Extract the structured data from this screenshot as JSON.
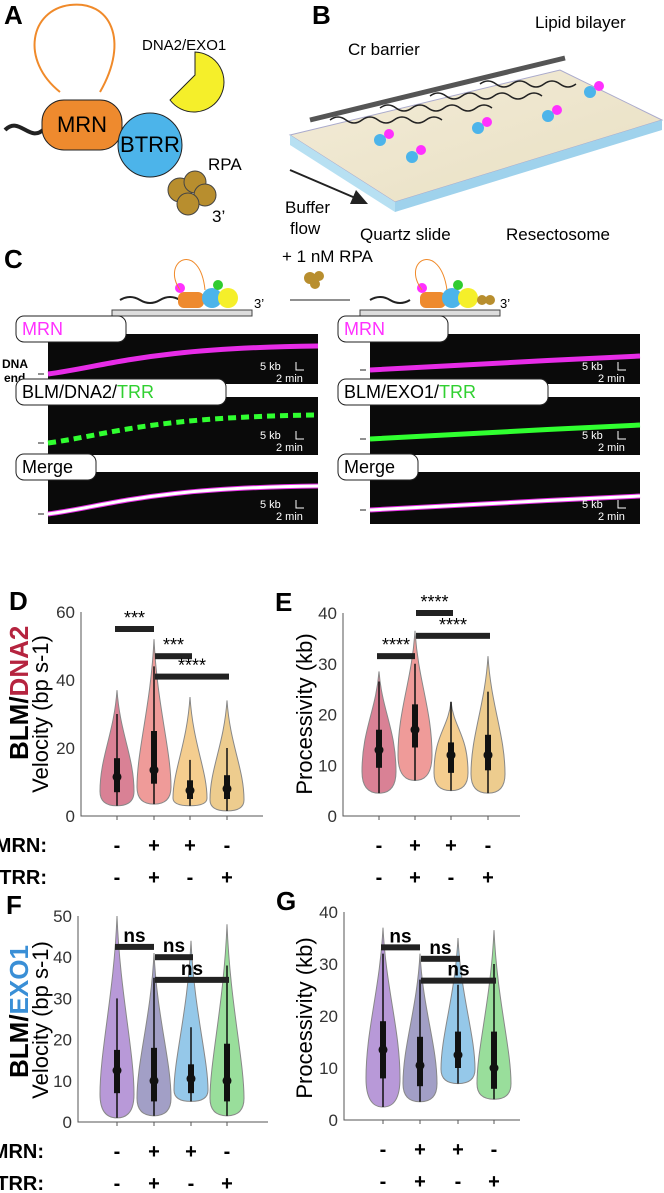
{
  "panels": {
    "A": {
      "label": "A",
      "mrn": "MRN",
      "btrr": "BTRR",
      "nuclease": "DNA2/EXO1",
      "rpa": "RPA",
      "end": "3’"
    },
    "B": {
      "label": "B",
      "cr": "Cr barrier",
      "lipid": "Lipid bilayer",
      "buffer1": "Buffer",
      "buffer2": "flow",
      "quartz": "Quartz slide",
      "resect": "Resectosome"
    },
    "C": {
      "label": "C",
      "rpa": "+ 1 nM RPA",
      "end": "3’",
      "dna_end1": "DNA",
      "dna_end2": "end",
      "scale_kb": "5 kb",
      "scale_min": "2 min",
      "left": {
        "mrn": "MRN",
        "trio_a": "BLM/DNA2/",
        "trio_b": "TRR",
        "merge": "Merge"
      },
      "right": {
        "mrn": "MRN",
        "trio_a": "BLM/EXO1/",
        "trio_b": "TRR",
        "merge": "Merge"
      }
    },
    "row1_label_a": "BLM/",
    "row1_label_b": "DNA2",
    "row2_label_a": "BLM/",
    "row2_label_b": "EXO1",
    "cond": {
      "mrn": "MRN:",
      "trr": "TRR:",
      "mrn_vals": [
        "-",
        "+",
        "+",
        "-"
      ],
      "trr_vals": [
        "-",
        "+",
        "-",
        "+"
      ]
    }
  },
  "colors": {
    "magenta": "#ff30ff",
    "green": "#30ff30",
    "dna2": "#b5243f",
    "exo1": "#3a8fd6"
  },
  "chart_data": [
    {
      "panel": "D",
      "type": "violin",
      "ylabel": "Velocity (bp s-1)",
      "ylim": [
        0,
        60
      ],
      "yticks": [
        0,
        20,
        40,
        60
      ],
      "categories": [
        "MRN- TRR-",
        "MRN+ TRR+",
        "MRN+ TRR-",
        "MRN- TRR+"
      ],
      "colors": [
        "#c94c68",
        "#e8706e",
        "#f0b860",
        "#e6b65e"
      ],
      "violins": [
        {
          "min": 3,
          "max": 37,
          "q1": 7,
          "median": 11.5,
          "q3": 17,
          "whisker": 30
        },
        {
          "min": 3.5,
          "max": 52,
          "q1": 9.5,
          "median": 13.5,
          "q3": 25,
          "whisker": 44
        },
        {
          "min": 3,
          "max": 35,
          "q1": 5,
          "median": 7.5,
          "q3": 10.5,
          "whisker": 16.5
        },
        {
          "min": 1.5,
          "max": 34,
          "q1": 5,
          "median": 8,
          "q3": 12,
          "whisker": 20
        }
      ],
      "significance": [
        {
          "from": 1,
          "to": 2,
          "y": 55,
          "label": "***"
        },
        {
          "from": 2,
          "to": 3,
          "y": 47,
          "label": "***"
        },
        {
          "from": 2,
          "to": 4,
          "y": 41,
          "label": "****"
        }
      ]
    },
    {
      "panel": "E",
      "type": "violin",
      "ylabel": "Processivity (kb)",
      "ylim": [
        0,
        40
      ],
      "yticks": [
        0,
        10,
        20,
        30,
        40
      ],
      "categories": [
        "MRN- TRR-",
        "MRN+ TRR+",
        "MRN+ TRR-",
        "MRN- TRR+"
      ],
      "colors": [
        "#c94c68",
        "#e8706e",
        "#f0b860",
        "#e6b65e"
      ],
      "violins": [
        {
          "min": 4.5,
          "max": 28.5,
          "q1": 9.5,
          "median": 13,
          "q3": 17,
          "whisker": 26.5
        },
        {
          "min": 7,
          "max": 36.5,
          "q1": 13.5,
          "median": 17,
          "q3": 22,
          "whisker": 30
        },
        {
          "min": 5,
          "max": 22.5,
          "q1": 8.5,
          "median": 12,
          "q3": 14.5,
          "whisker": 22.5
        },
        {
          "min": 4.5,
          "max": 31.5,
          "q1": 9,
          "median": 12,
          "q3": 16,
          "whisker": 24.5
        }
      ],
      "significance": [
        {
          "from": 1,
          "to": 2,
          "y": 31.5,
          "label": "****"
        },
        {
          "from": 2,
          "to": 3,
          "y": 40,
          "label": "****"
        },
        {
          "from": 2,
          "to": 4,
          "y": 35.5,
          "label": "****"
        }
      ]
    },
    {
      "panel": "F",
      "type": "violin",
      "ylabel": "Velocity (bp s-1)",
      "ylim": [
        0,
        50
      ],
      "yticks": [
        0,
        10,
        20,
        30,
        40,
        50
      ],
      "categories": [
        "MRN- TRR-",
        "MRN+ TRR+",
        "MRN+ TRR-",
        "MRN- TRR+"
      ],
      "colors": [
        "#9a6ec8",
        "#7a76ae",
        "#68b0e0",
        "#6ed070"
      ],
      "violins": [
        {
          "min": 1,
          "max": 50,
          "q1": 7,
          "median": 12.5,
          "q3": 17.5,
          "whisker": 30
        },
        {
          "min": 1.5,
          "max": 41,
          "q1": 5,
          "median": 10,
          "q3": 18,
          "whisker": 35
        },
        {
          "min": 5,
          "max": 44,
          "q1": 7,
          "median": 10.5,
          "q3": 14,
          "whisker": 23
        },
        {
          "min": 1.5,
          "max": 48,
          "q1": 5,
          "median": 10,
          "q3": 19,
          "whisker": 38
        }
      ],
      "significance": [
        {
          "from": 1,
          "to": 2,
          "y": 42.5,
          "label": "ns"
        },
        {
          "from": 2,
          "to": 3,
          "y": 40,
          "label": "ns"
        },
        {
          "from": 2,
          "to": 4,
          "y": 34.5,
          "label": "ns"
        }
      ]
    },
    {
      "panel": "G",
      "type": "violin",
      "ylabel": "Processivity (kb)",
      "ylim": [
        0,
        40
      ],
      "yticks": [
        0,
        10,
        20,
        30,
        40
      ],
      "categories": [
        "MRN- TRR-",
        "MRN+ TRR+",
        "MRN+ TRR-",
        "MRN- TRR+"
      ],
      "colors": [
        "#9a6ec8",
        "#7a76ae",
        "#68b0e0",
        "#6ed070"
      ],
      "violins": [
        {
          "min": 2.5,
          "max": 37,
          "q1": 8,
          "median": 13.5,
          "q3": 19,
          "whisker": 32
        },
        {
          "min": 3.5,
          "max": 32,
          "q1": 6.5,
          "median": 10.5,
          "q3": 16,
          "whisker": 27
        },
        {
          "min": 7,
          "max": 35,
          "q1": 10,
          "median": 12.5,
          "q3": 17,
          "whisker": 26
        },
        {
          "min": 4,
          "max": 36.5,
          "q1": 6,
          "median": 10,
          "q3": 17,
          "whisker": 30
        }
      ],
      "significance": [
        {
          "from": 1,
          "to": 2,
          "y": 33.2,
          "label": "ns"
        },
        {
          "from": 2,
          "to": 3,
          "y": 31,
          "label": "ns"
        },
        {
          "from": 2,
          "to": 4,
          "y": 26.8,
          "label": "ns"
        }
      ]
    }
  ]
}
